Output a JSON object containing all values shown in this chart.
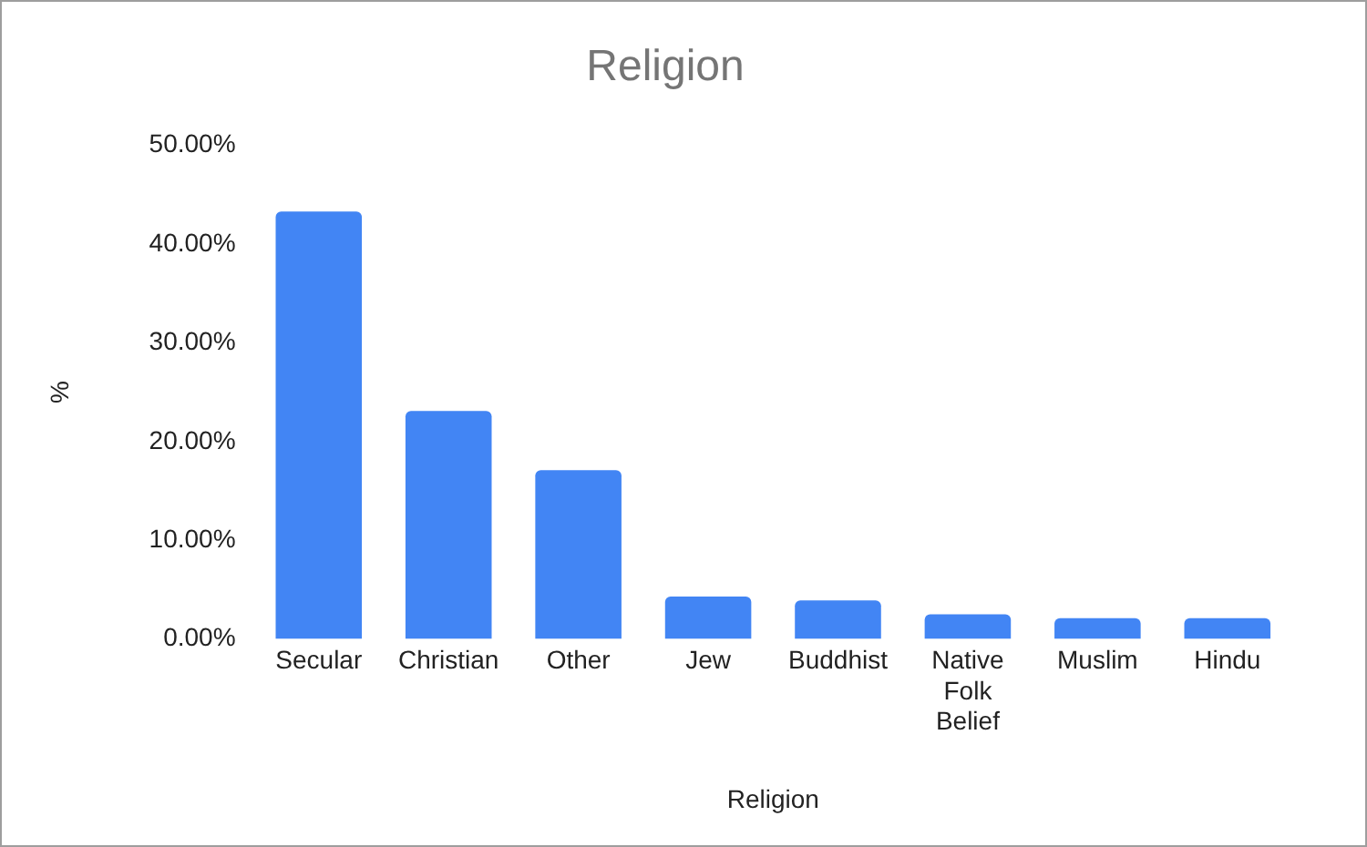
{
  "chart_data": {
    "type": "bar",
    "title": "Religion",
    "xlabel": "Religion",
    "ylabel": "%",
    "categories": [
      "Secular",
      "Christian",
      "Other",
      "Jew",
      "Buddhist",
      "Native Folk Belief",
      "Muslim",
      "Hindu"
    ],
    "values": [
      43.3,
      23.1,
      17.1,
      4.3,
      3.9,
      2.5,
      2.1,
      2.1
    ],
    "color": "#4285f4",
    "ylim": [
      0,
      50
    ],
    "yticks": [
      {
        "value": 0,
        "label": "0.00%"
      },
      {
        "value": 10,
        "label": "10.00%"
      },
      {
        "value": 20,
        "label": "20.00%"
      },
      {
        "value": 30,
        "label": "30.00%"
      },
      {
        "value": 40,
        "label": "40.00%"
      },
      {
        "value": 50,
        "label": "50.00%"
      }
    ],
    "grid": false,
    "legend": false
  }
}
